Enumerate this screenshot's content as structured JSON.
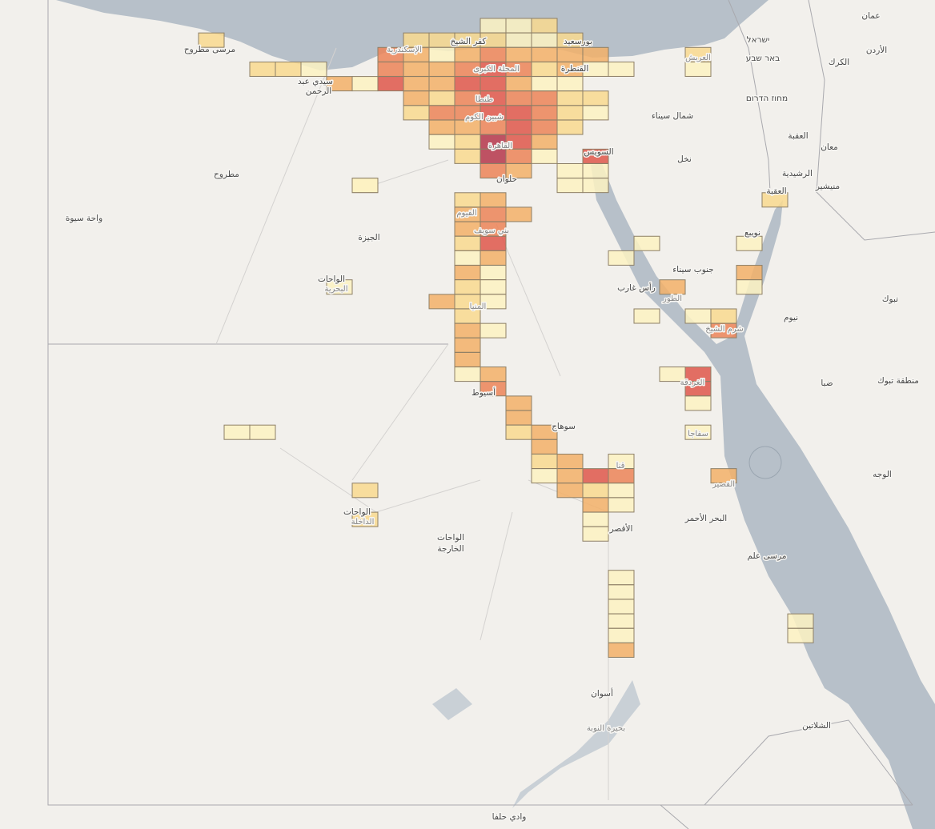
{
  "map": {
    "palette": [
      "#fdf2c2",
      "#f9d98f",
      "#f3b069",
      "#ec8458",
      "#df574b",
      "#b5364b"
    ],
    "cells": [
      [
        0,
        1,
        2
      ],
      [
        2,
        3,
        2
      ],
      [
        3,
        3,
        2
      ],
      [
        4,
        3,
        1
      ],
      [
        5,
        4,
        3
      ],
      [
        6,
        4,
        1
      ],
      [
        7,
        2,
        4
      ],
      [
        7,
        3,
        4
      ],
      [
        7,
        4,
        5
      ],
      [
        8,
        1,
        2
      ],
      [
        8,
        2,
        3
      ],
      [
        8,
        3,
        3
      ],
      [
        8,
        4,
        3
      ],
      [
        8,
        5,
        3
      ],
      [
        8,
        6,
        2
      ],
      [
        9,
        1,
        2
      ],
      [
        9,
        2,
        1
      ],
      [
        9,
        3,
        3
      ],
      [
        9,
        4,
        3
      ],
      [
        9,
        5,
        2
      ],
      [
        9,
        6,
        4
      ],
      [
        9,
        7,
        3
      ],
      [
        9,
        8,
        1
      ],
      [
        10,
        1,
        2
      ],
      [
        10,
        2,
        3
      ],
      [
        10,
        3,
        4
      ],
      [
        10,
        4,
        5
      ],
      [
        10,
        5,
        4
      ],
      [
        10,
        6,
        4
      ],
      [
        10,
        7,
        3
      ],
      [
        10,
        8,
        2
      ],
      [
        10,
        9,
        2
      ],
      [
        11,
        0,
        1
      ],
      [
        11,
        1,
        2
      ],
      [
        11,
        2,
        4
      ],
      [
        11,
        3,
        5
      ],
      [
        11,
        4,
        5
      ],
      [
        11,
        5,
        5
      ],
      [
        11,
        6,
        5
      ],
      [
        11,
        7,
        4
      ],
      [
        11,
        8,
        6
      ],
      [
        11,
        9,
        6
      ],
      [
        11,
        10,
        4
      ],
      [
        12,
        0,
        1
      ],
      [
        12,
        1,
        1
      ],
      [
        12,
        2,
        3
      ],
      [
        12,
        3,
        4
      ],
      [
        12,
        4,
        3
      ],
      [
        12,
        5,
        4
      ],
      [
        12,
        6,
        5
      ],
      [
        12,
        7,
        5
      ],
      [
        12,
        8,
        5
      ],
      [
        12,
        9,
        4
      ],
      [
        12,
        10,
        3
      ],
      [
        13,
        0,
        2
      ],
      [
        13,
        1,
        1
      ],
      [
        13,
        2,
        3
      ],
      [
        13,
        3,
        2
      ],
      [
        13,
        4,
        1
      ],
      [
        13,
        5,
        4
      ],
      [
        13,
        6,
        4
      ],
      [
        13,
        7,
        4
      ],
      [
        13,
        8,
        3
      ],
      [
        13,
        9,
        1
      ],
      [
        14,
        1,
        2
      ],
      [
        14,
        2,
        3
      ],
      [
        14,
        3,
        3
      ],
      [
        14,
        4,
        1
      ],
      [
        14,
        5,
        2
      ],
      [
        14,
        6,
        2
      ],
      [
        14,
        7,
        2
      ],
      [
        14,
        10,
        1
      ],
      [
        14,
        11,
        1
      ],
      [
        15,
        2,
        3
      ],
      [
        15,
        3,
        1
      ],
      [
        15,
        5,
        2
      ],
      [
        15,
        6,
        1
      ],
      [
        15,
        9,
        5
      ],
      [
        15,
        10,
        1
      ],
      [
        15,
        11,
        1
      ],
      [
        16,
        3,
        1
      ],
      [
        19,
        2,
        2
      ],
      [
        19,
        3,
        1
      ],
      [
        6,
        11,
        1
      ],
      [
        10,
        12,
        2
      ],
      [
        10,
        13,
        3
      ],
      [
        10,
        14,
        3
      ],
      [
        10,
        15,
        2
      ],
      [
        10,
        16,
        1
      ],
      [
        10,
        17,
        3
      ],
      [
        10,
        18,
        2
      ],
      [
        10,
        19,
        2
      ],
      [
        10,
        20,
        2
      ],
      [
        10,
        21,
        3
      ],
      [
        10,
        22,
        3
      ],
      [
        10,
        23,
        3
      ],
      [
        10,
        24,
        1
      ],
      [
        11,
        12,
        3
      ],
      [
        11,
        13,
        4
      ],
      [
        11,
        14,
        4
      ],
      [
        11,
        15,
        5
      ],
      [
        11,
        16,
        3
      ],
      [
        11,
        17,
        1
      ],
      [
        11,
        18,
        1
      ],
      [
        11,
        19,
        1
      ],
      [
        11,
        21,
        1
      ],
      [
        11,
        24,
        3
      ],
      [
        11,
        25,
        4
      ],
      [
        12,
        13,
        3
      ],
      [
        9,
        19,
        3
      ],
      [
        12,
        26,
        3
      ],
      [
        12,
        27,
        3
      ],
      [
        12,
        28,
        2
      ],
      [
        13,
        28,
        3
      ],
      [
        13,
        29,
        3
      ],
      [
        13,
        30,
        2
      ],
      [
        13,
        31,
        1
      ],
      [
        14,
        30,
        3
      ],
      [
        14,
        31,
        3
      ],
      [
        14,
        32,
        3
      ],
      [
        15,
        31,
        5
      ],
      [
        15,
        32,
        2
      ],
      [
        15,
        33,
        3
      ],
      [
        15,
        34,
        1
      ],
      [
        15,
        35,
        1
      ],
      [
        16,
        30,
        1
      ],
      [
        16,
        31,
        4
      ],
      [
        16,
        32,
        1
      ],
      [
        16,
        33,
        1
      ],
      [
        16,
        38,
        1
      ],
      [
        16,
        39,
        1
      ],
      [
        16,
        40,
        1
      ],
      [
        16,
        41,
        1
      ],
      [
        16,
        42,
        1
      ],
      [
        16,
        43,
        3
      ],
      [
        17,
        15,
        1
      ],
      [
        16,
        16,
        1
      ],
      [
        18,
        18,
        3
      ],
      [
        17,
        20,
        1
      ],
      [
        19,
        20,
        1
      ],
      [
        20,
        20,
        2
      ],
      [
        20,
        21,
        4
      ],
      [
        18,
        24,
        1
      ],
      [
        19,
        24,
        5
      ],
      [
        19,
        25,
        5
      ],
      [
        19,
        26,
        1
      ],
      [
        19,
        28,
        1
      ],
      [
        20,
        31,
        3
      ],
      [
        21,
        15,
        1
      ],
      [
        21,
        17,
        3
      ],
      [
        21,
        18,
        1
      ],
      [
        22,
        12,
        2
      ],
      [
        23,
        41,
        1
      ],
      [
        23,
        42,
        1
      ],
      [
        1,
        28,
        1
      ],
      [
        2,
        28,
        1
      ],
      [
        6,
        32,
        2
      ],
      [
        6,
        34,
        2
      ],
      [
        6,
        11,
        1
      ],
      [
        5,
        18,
        1
      ]
    ],
    "places": [
      "مرسى مطروح",
      "سيدي عبد",
      "الرحمن",
      "الإسكندرية",
      "كفر الشيخ",
      "بورسعيد",
      "القنطرة",
      "المحلة الكبرى",
      "طنطا",
      "شبين الكوم",
      "القاهرة",
      "حلوان",
      "السويس",
      "العريش",
      "شمال سيناء",
      "نخل",
      "مطروح",
      "واحة سيوة",
      "الجيزة",
      "الفيوم",
      "بني سويف",
      "الواحات",
      "البحرية",
      "المنيا",
      "أسيوط",
      "سوهاج",
      "قنا",
      "الأقصر",
      "الواحات",
      "الداخلة",
      "الواحات",
      "الخارجة",
      "أسوان",
      "بحيرة النوبة",
      "وادي حلفا",
      "جنوب سيناء",
      "رأس غارب",
      "الطور",
      "شرم الشيخ",
      "الغردقة",
      "سفاجا",
      "القصير",
      "البحر الأحمر",
      "مرسى علم",
      "الشلاتين",
      "نويبع",
      "العقبة",
      "الرشيدية",
      "منيشير",
      "معان",
      "نيوم",
      "تبوك",
      "ضبا",
      "منطقة تبوك",
      "الوجه",
      "الأردن",
      "الكرك",
      "عمان",
      "ישראל",
      "באר שבע",
      "מחוז הדרום",
      "العقبة"
    ]
  }
}
